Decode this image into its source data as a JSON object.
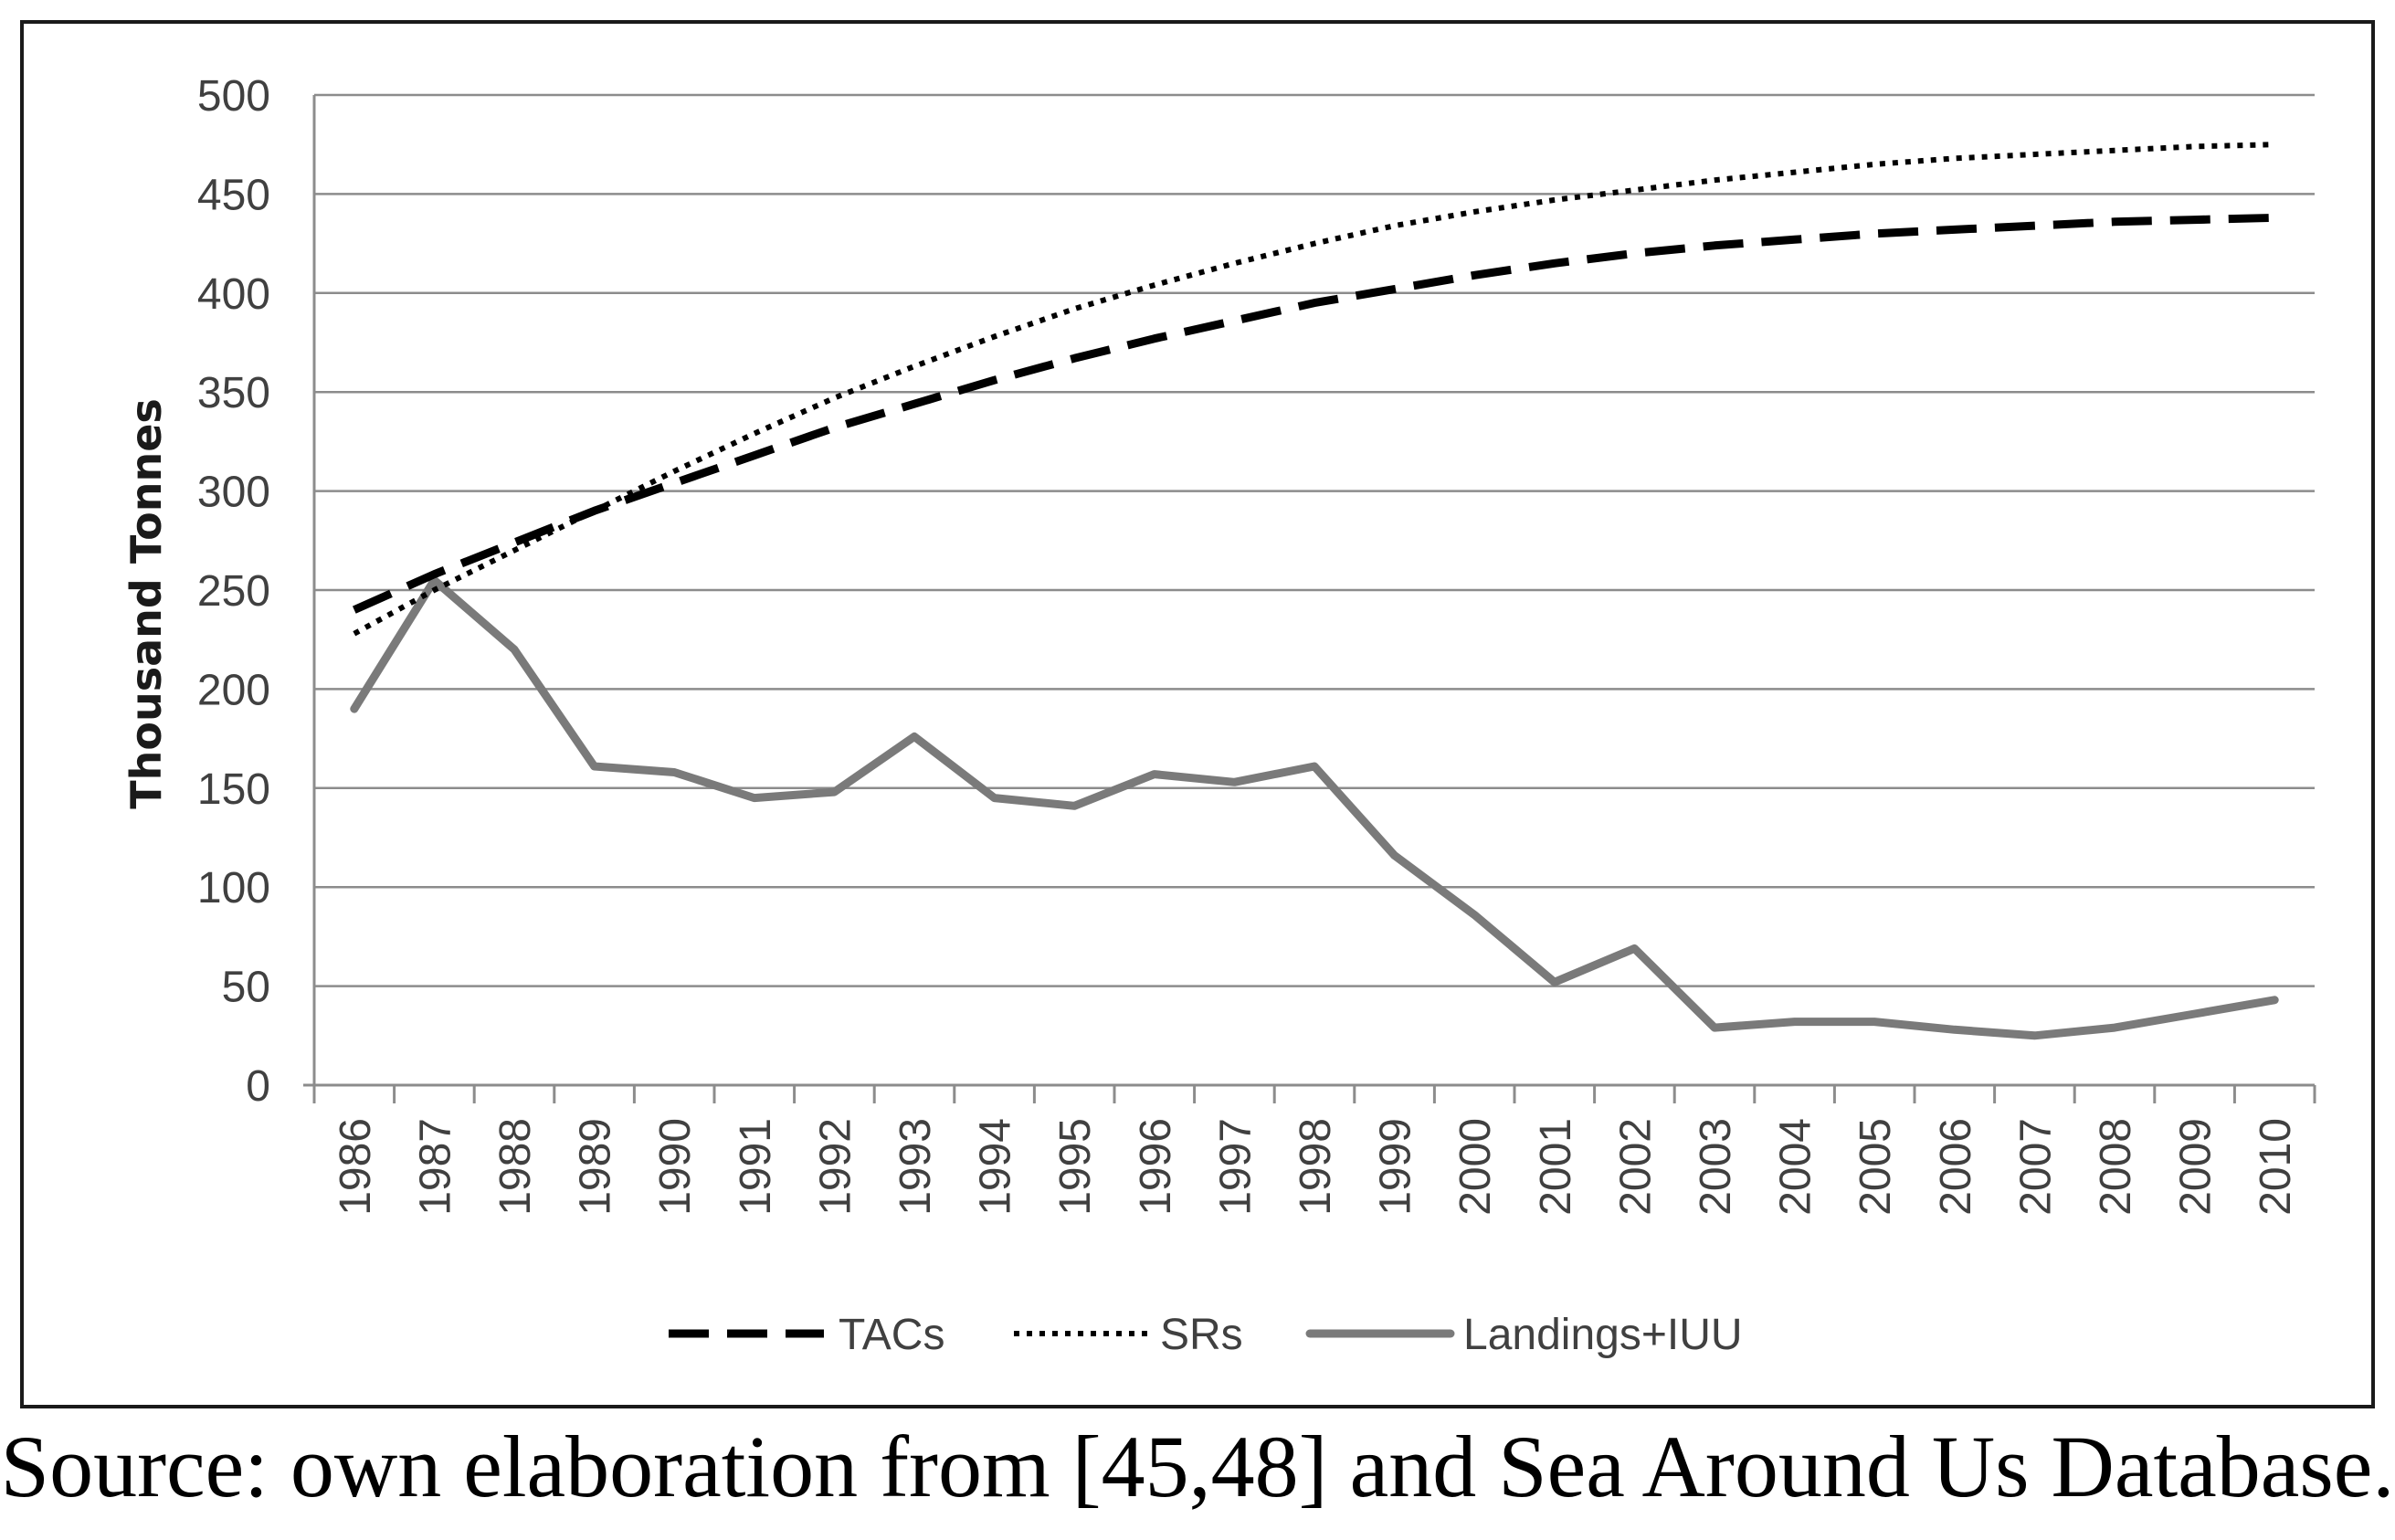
{
  "chart_data": {
    "type": "line",
    "title": "",
    "xlabel": "",
    "ylabel": "Thousand Tonnes",
    "ylim": [
      0,
      500
    ],
    "yticks": [
      0,
      50,
      100,
      150,
      200,
      250,
      300,
      350,
      400,
      450,
      500
    ],
    "grid": true,
    "legend_position": "bottom",
    "categories": [
      "1986",
      "1987",
      "1988",
      "1989",
      "1990",
      "1991",
      "1992",
      "1993",
      "1994",
      "1995",
      "1996",
      "1997",
      "1998",
      "1999",
      "2000",
      "2001",
      "2002",
      "2003",
      "2004",
      "2005",
      "2006",
      "2007",
      "2008",
      "2009",
      "2010"
    ],
    "series": [
      {
        "name": "TACs",
        "style": "dashed",
        "color": "#000000",
        "values": [
          240,
          258,
          274,
          290,
          304,
          318,
          332,
          344,
          356,
          367,
          377,
          386,
          395,
          402,
          409,
          415,
          420,
          424,
          427,
          430,
          432,
          434,
          436,
          437,
          438
        ]
      },
      {
        "name": "SRs",
        "style": "dotted",
        "color": "#000000",
        "values": [
          228,
          250,
          270,
          290,
          310,
          329,
          347,
          363,
          378,
          392,
          404,
          415,
          425,
          434,
          441,
          447,
          452,
          457,
          461,
          465,
          468,
          470,
          472,
          474,
          475
        ]
      },
      {
        "name": "Landings+IUU",
        "style": "solid",
        "color": "#7a7a7a",
        "values": [
          190,
          255,
          220,
          161,
          158,
          145,
          148,
          176,
          145,
          141,
          157,
          153,
          161,
          116,
          86,
          52,
          69,
          29,
          32,
          32,
          28,
          25,
          29,
          36,
          43
        ]
      }
    ]
  },
  "caption": "Source: own elaboration from [45,48] and Sea Around Us Database."
}
